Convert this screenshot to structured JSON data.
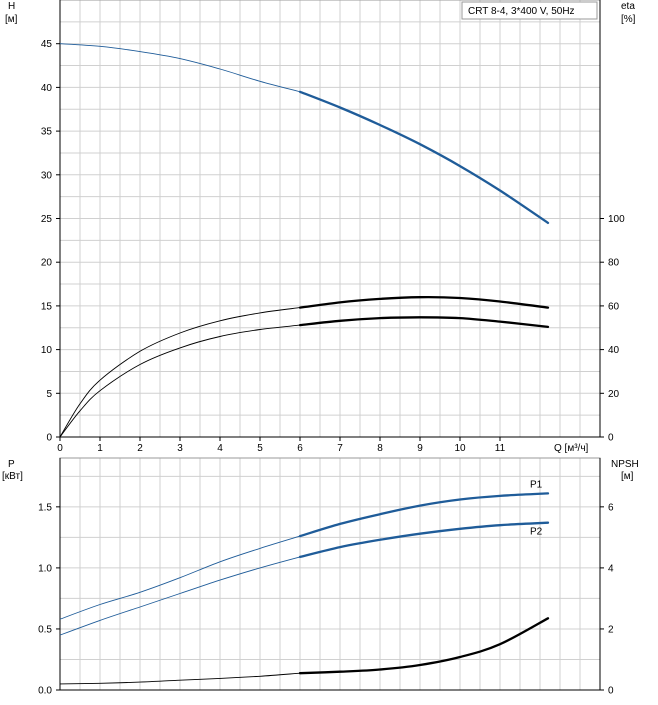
{
  "header_label": "CRT 8-4, 3*400 V, 50Hz",
  "colors": {
    "blue": "#1f5c99",
    "black": "#000000",
    "grid": "#d0d0d0"
  },
  "chart_data": [
    {
      "type": "line",
      "panel": "head-efficiency",
      "left_axis": {
        "label": "H",
        "unit": "[м]",
        "ticks": [
          0,
          5,
          10,
          15,
          20,
          25,
          30,
          35,
          40,
          45
        ],
        "ylim": [
          0,
          50
        ]
      },
      "right_axis": {
        "label": "eta",
        "unit": "[%]",
        "ticks": [
          0,
          20,
          40,
          60,
          80,
          100
        ],
        "ylim": [
          0,
          200
        ]
      },
      "x_axis": {
        "label": "Q [м³/ч]",
        "ticks": [
          0,
          1,
          2,
          3,
          4,
          5,
          6,
          7,
          8,
          9,
          10,
          11
        ],
        "xlim": [
          0,
          13.5
        ]
      },
      "grid": true,
      "series": [
        {
          "id": "head",
          "axis": "left",
          "color": "#1f5c99",
          "operating_range_from": 6,
          "x": [
            0,
            1,
            2,
            3,
            4,
            5,
            6,
            7,
            8,
            9,
            10,
            11,
            12.2
          ],
          "y": [
            45,
            44.7,
            44.1,
            43.3,
            42.1,
            40.7,
            39.5,
            37.7,
            35.7,
            33.5,
            31,
            28.2,
            24.5
          ]
        },
        {
          "id": "efficiency-upper",
          "axis": "left",
          "color": "#000000",
          "operating_range_from": 6,
          "x": [
            0,
            0.5,
            1,
            2,
            3,
            4,
            5,
            6,
            7,
            8,
            9,
            10,
            11,
            12.2
          ],
          "y": [
            0,
            3.8,
            6.5,
            9.8,
            11.9,
            13.3,
            14.2,
            14.8,
            15.4,
            15.8,
            16,
            15.9,
            15.5,
            14.8
          ]
        },
        {
          "id": "efficiency-lower",
          "axis": "left",
          "color": "#000000",
          "operating_range_from": 6,
          "x": [
            0,
            0.5,
            1,
            2,
            3,
            4,
            5,
            6,
            7,
            8,
            9,
            10,
            11,
            12.2
          ],
          "y": [
            0,
            3,
            5.3,
            8.3,
            10.2,
            11.5,
            12.3,
            12.8,
            13.3,
            13.6,
            13.7,
            13.6,
            13.2,
            12.6
          ]
        }
      ]
    },
    {
      "type": "line",
      "panel": "power-npsh",
      "left_axis": {
        "label": "P",
        "unit": "[кВт]",
        "ticks": [
          0.0,
          0.5,
          1.0,
          1.5
        ],
        "tick_labels": [
          "0.0",
          "0.5",
          "1.0",
          "1.5"
        ],
        "ylim": [
          0,
          1.9
        ]
      },
      "right_axis": {
        "label": "NPSH",
        "unit": "[м]",
        "ticks": [
          0,
          2,
          4,
          6
        ],
        "ylim": [
          0,
          7.6
        ]
      },
      "x_axis": {
        "xlim": [
          0,
          13.5
        ]
      },
      "grid": true,
      "series": [
        {
          "id": "P1",
          "name": "P1",
          "axis": "left",
          "color": "#1f5c99",
          "operating_range_from": 6,
          "x": [
            0,
            1,
            2,
            3,
            4,
            5,
            6,
            7,
            8,
            9,
            10,
            11,
            12.2
          ],
          "y": [
            0.58,
            0.7,
            0.8,
            0.92,
            1.05,
            1.16,
            1.26,
            1.36,
            1.44,
            1.51,
            1.56,
            1.59,
            1.61
          ]
        },
        {
          "id": "P2",
          "name": "P2",
          "axis": "left",
          "color": "#1f5c99",
          "operating_range_from": 6,
          "x": [
            0,
            1,
            2,
            3,
            4,
            5,
            6,
            7,
            8,
            9,
            10,
            11,
            12.2
          ],
          "y": [
            0.45,
            0.57,
            0.68,
            0.79,
            0.9,
            1.0,
            1.09,
            1.17,
            1.23,
            1.28,
            1.32,
            1.35,
            1.37
          ]
        },
        {
          "id": "NPSH",
          "axis": "right",
          "color": "#000000",
          "operating_range_from": 6,
          "x": [
            0,
            1,
            2,
            3,
            4,
            5,
            6,
            7,
            8,
            9,
            10,
            11,
            12.2
          ],
          "y": [
            0.2,
            0.22,
            0.26,
            0.32,
            0.38,
            0.45,
            0.55,
            0.6,
            0.67,
            0.82,
            1.08,
            1.5,
            2.35
          ]
        }
      ]
    }
  ]
}
